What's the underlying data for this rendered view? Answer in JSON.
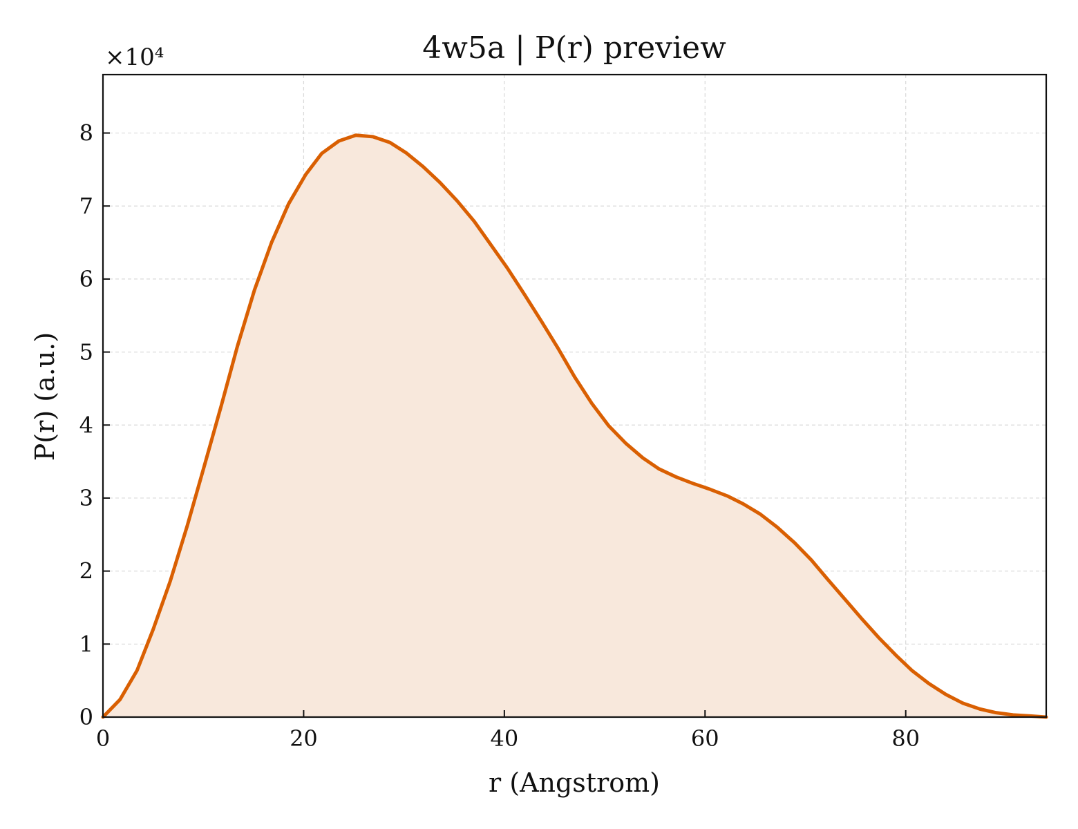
{
  "chart_data": {
    "type": "area",
    "title": "4w5a | P(r) preview",
    "xlabel": "r (Angstrom)",
    "ylabel": "P(r) (a.u.)",
    "y_multiplier_label": "×10⁴",
    "xlim": [
      0,
      94
    ],
    "ylim": [
      0,
      8.8
    ],
    "x_ticks": [
      0,
      20,
      40,
      60,
      80
    ],
    "y_ticks": [
      0,
      1,
      2,
      3,
      4,
      5,
      6,
      7,
      8
    ],
    "grid": true,
    "series": [
      {
        "x": [
          0,
          1.7,
          3.4,
          5.0,
          6.7,
          8.4,
          10.1,
          11.8,
          13.4,
          15.1,
          16.8,
          18.5,
          20.2,
          21.8,
          23.5,
          25.2,
          26.9,
          28.6,
          30.2,
          31.9,
          33.6,
          35.3,
          37.0,
          38.6,
          40.3,
          42.0,
          43.7,
          45.4,
          47.0,
          48.7,
          50.4,
          52.1,
          53.8,
          55.4,
          57.1,
          58.8,
          60.5,
          62.2,
          63.8,
          65.5,
          67.2,
          68.9,
          70.6,
          72.2,
          73.9,
          75.6,
          77.3,
          79.0,
          80.6,
          82.3,
          84.0,
          85.7,
          87.4,
          89.0,
          90.7,
          92.4,
          94.0
        ],
        "values": [
          0,
          0.24,
          0.64,
          1.2,
          1.86,
          2.62,
          3.44,
          4.27,
          5.08,
          5.85,
          6.5,
          7.03,
          7.43,
          7.72,
          7.89,
          7.97,
          7.95,
          7.87,
          7.73,
          7.54,
          7.32,
          7.07,
          6.79,
          6.48,
          6.15,
          5.79,
          5.42,
          5.04,
          4.66,
          4.3,
          3.99,
          3.75,
          3.55,
          3.4,
          3.29,
          3.2,
          3.12,
          3.03,
          2.92,
          2.78,
          2.6,
          2.39,
          2.15,
          1.89,
          1.62,
          1.35,
          1.09,
          0.85,
          0.64,
          0.46,
          0.31,
          0.19,
          0.11,
          0.06,
          0.03,
          0.015,
          0.0
        ]
      }
    ],
    "colors": {
      "line": "#d95f02",
      "fill": "#f8e8dc",
      "grid": "#d9d9d9",
      "axis": "#111111"
    }
  }
}
